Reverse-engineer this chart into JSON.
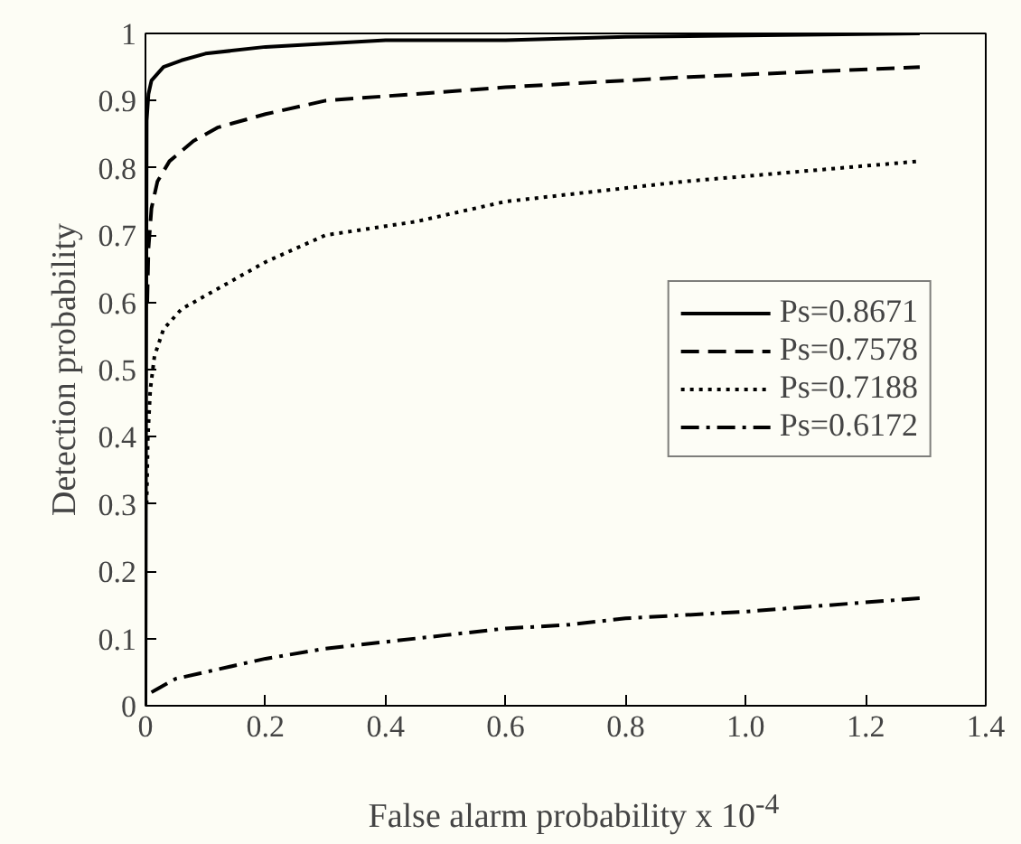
{
  "chart_data": {
    "type": "line",
    "xlabel": "False alarm probability x 10$^{-4}$",
    "ylabel": "Detection probability",
    "xlim": [
      0,
      1.4
    ],
    "ylim": [
      0,
      1
    ],
    "xticks": [
      0,
      0.2,
      0.4,
      0.6,
      0.8,
      {
        "value": 1,
        "label": "1.0"
      },
      1.2,
      1.4
    ],
    "yticks": [
      0,
      0.1,
      0.2,
      0.3,
      0.4,
      0.5,
      0.6,
      0.7,
      0.8,
      0.9,
      1
    ],
    "grid": false,
    "legend": "right",
    "series": [
      {
        "name": "Ps=0.8671",
        "color": "#000000",
        "line_style": "solid",
        "x": [
          0,
          0.002,
          0.005,
          0.01,
          0.03,
          0.06,
          0.1,
          0.2,
          0.4,
          0.6,
          0.8,
          1.0,
          1.29
        ],
        "values": [
          0,
          0.87,
          0.91,
          0.93,
          0.95,
          0.96,
          0.97,
          0.98,
          0.99,
          0.99,
          0.995,
          0.997,
          1.0
        ]
      },
      {
        "name": "Ps=0.7578",
        "color": "#000000",
        "line_style": "dashed",
        "x": [
          0.003,
          0.005,
          0.01,
          0.02,
          0.04,
          0.08,
          0.12,
          0.2,
          0.3,
          0.45,
          0.6,
          0.9,
          1.29
        ],
        "values": [
          0.6,
          0.68,
          0.74,
          0.78,
          0.81,
          0.84,
          0.86,
          0.88,
          0.9,
          0.91,
          0.92,
          0.935,
          0.95
        ]
      },
      {
        "name": "Ps=0.7188",
        "color": "#000000",
        "line_style": "dotted",
        "x": [
          0.002,
          0.004,
          0.008,
          0.015,
          0.03,
          0.06,
          0.1,
          0.2,
          0.3,
          0.45,
          0.6,
          0.9,
          1.29
        ],
        "values": [
          0.3,
          0.4,
          0.47,
          0.52,
          0.56,
          0.59,
          0.61,
          0.66,
          0.7,
          0.72,
          0.75,
          0.78,
          0.81
        ]
      },
      {
        "name": "Ps=0.6172",
        "color": "#000000",
        "line_style": "dashdot",
        "x": [
          0.01,
          0.05,
          0.1,
          0.2,
          0.3,
          0.4,
          0.5,
          0.6,
          0.7,
          0.8,
          1.0,
          1.29
        ],
        "values": [
          0.02,
          0.04,
          0.05,
          0.07,
          0.085,
          0.095,
          0.105,
          0.115,
          0.12,
          0.13,
          0.14,
          0.16
        ]
      }
    ]
  }
}
